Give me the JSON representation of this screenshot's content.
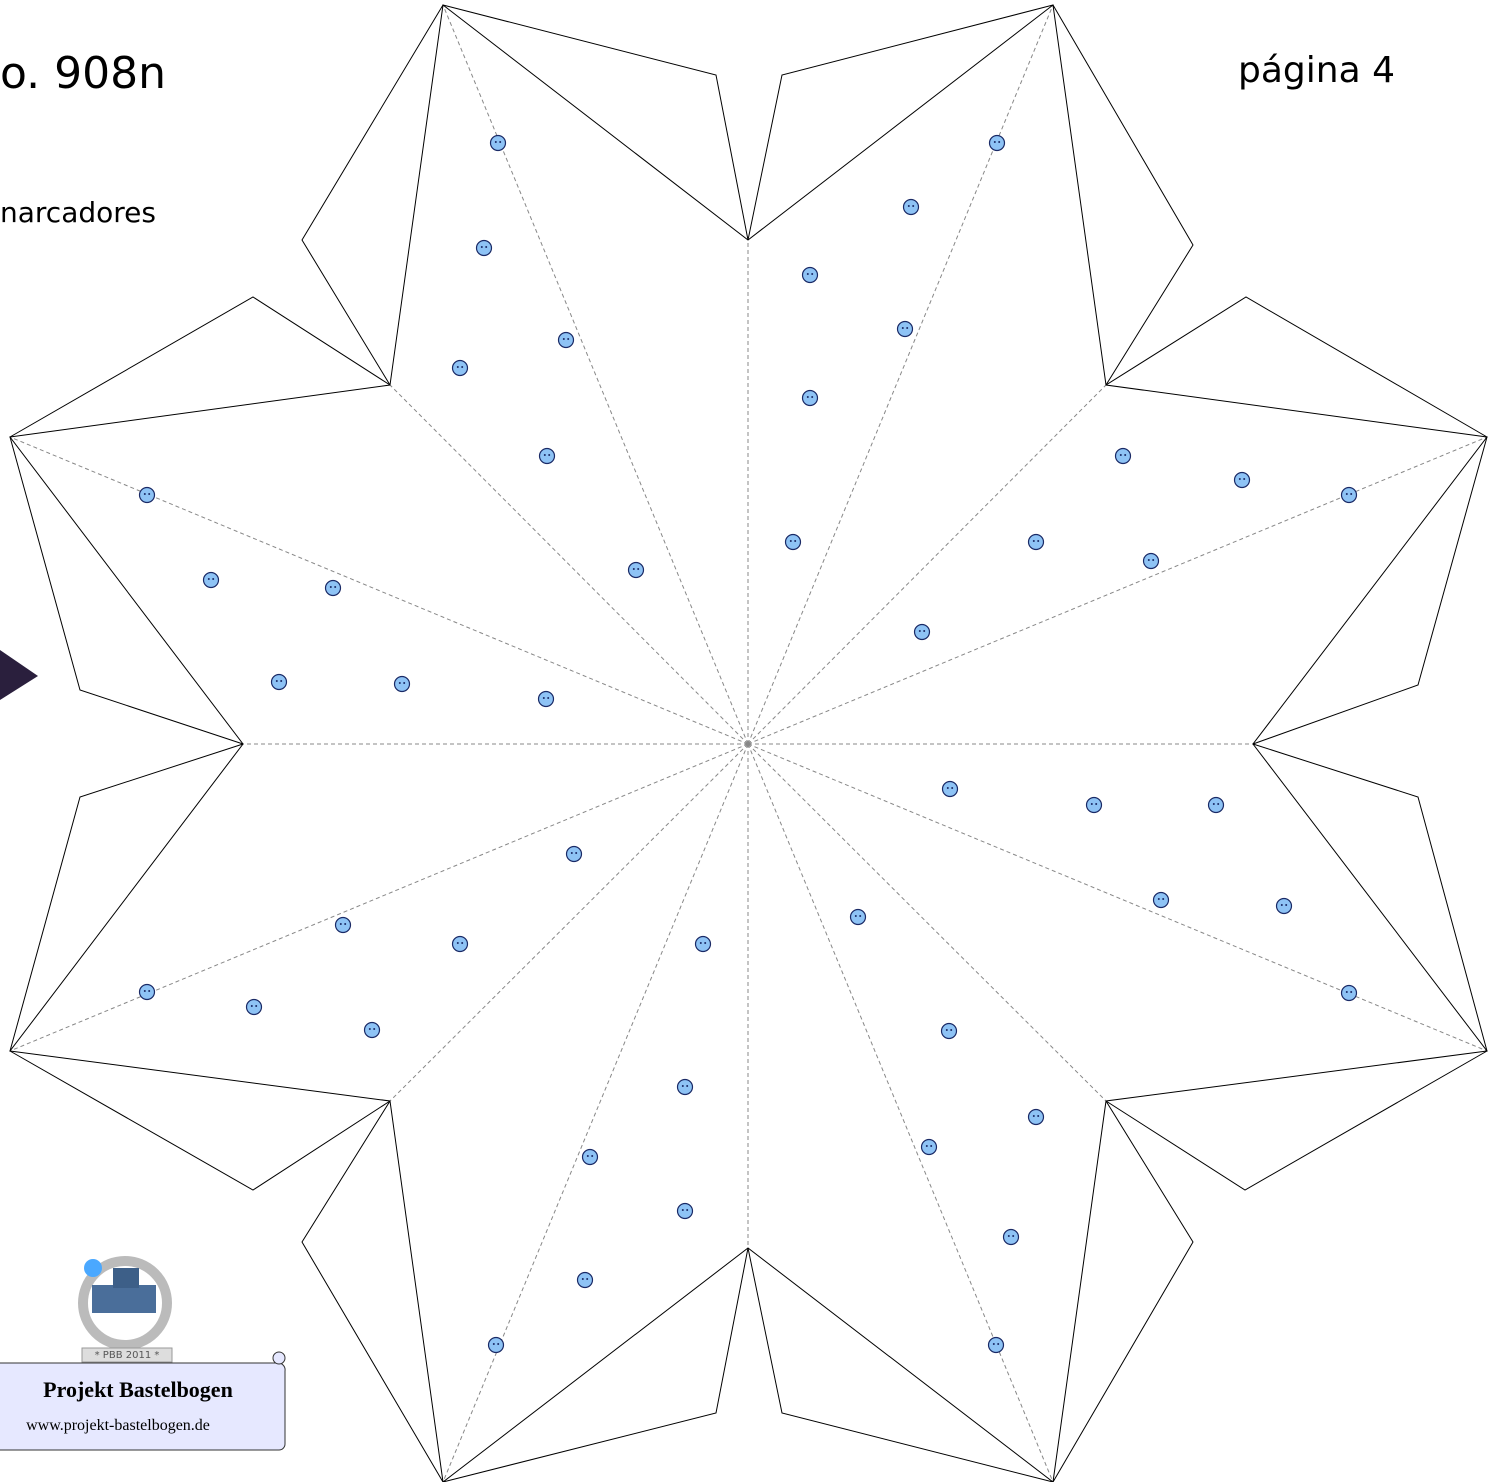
{
  "header": {
    "title": "o. 908n",
    "subtitle": "narcadores",
    "page": "página 4"
  },
  "logo": {
    "badge": "* PBB 2011 *",
    "name": "Projekt Bastelbogen",
    "url": "www.projekt-bastelbogen.de"
  }
}
